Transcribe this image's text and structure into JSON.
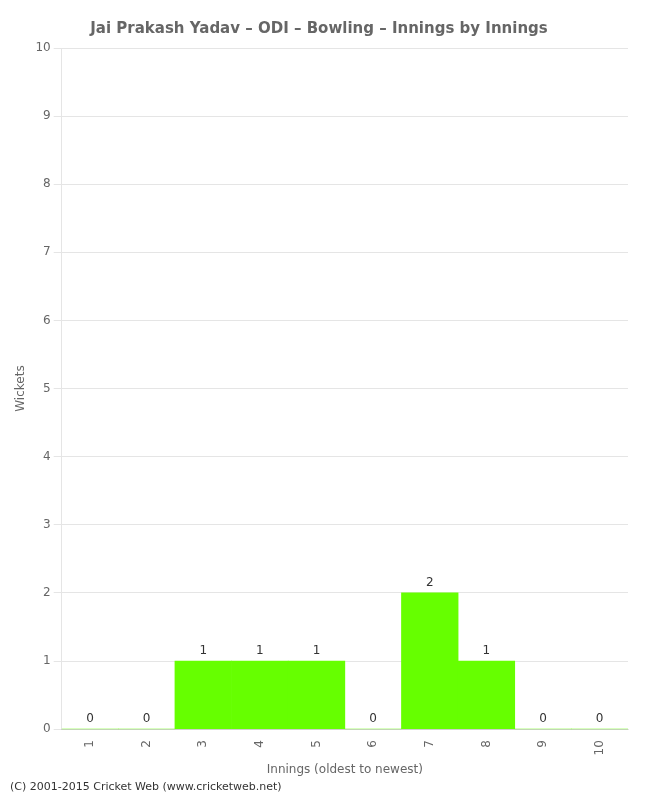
{
  "chart_data": {
    "type": "bar",
    "title": "Jai Prakash Yadav – ODI – Bowling – Innings by Innings",
    "xlabel": "Innings (oldest to newest)",
    "ylabel": "Wickets",
    "x": [
      1,
      2,
      3,
      4,
      5,
      6,
      7,
      8,
      9,
      10
    ],
    "values": [
      0,
      0,
      1,
      1,
      1,
      0,
      2,
      1,
      0,
      0
    ],
    "color": "#66ff00",
    "xlim": [
      0.5,
      10.5
    ],
    "xticks": [
      1,
      2,
      3,
      4,
      5,
      6,
      7,
      8,
      9,
      10
    ],
    "ylim": [
      0,
      10
    ],
    "yticks": [
      0,
      1,
      2,
      3,
      4,
      5,
      6,
      7,
      8,
      9,
      10
    ],
    "grid": "y",
    "data_labels": true,
    "annotations": [
      "(C) 2001-2015 Cricket Web (www.cricketweb.net)"
    ]
  }
}
